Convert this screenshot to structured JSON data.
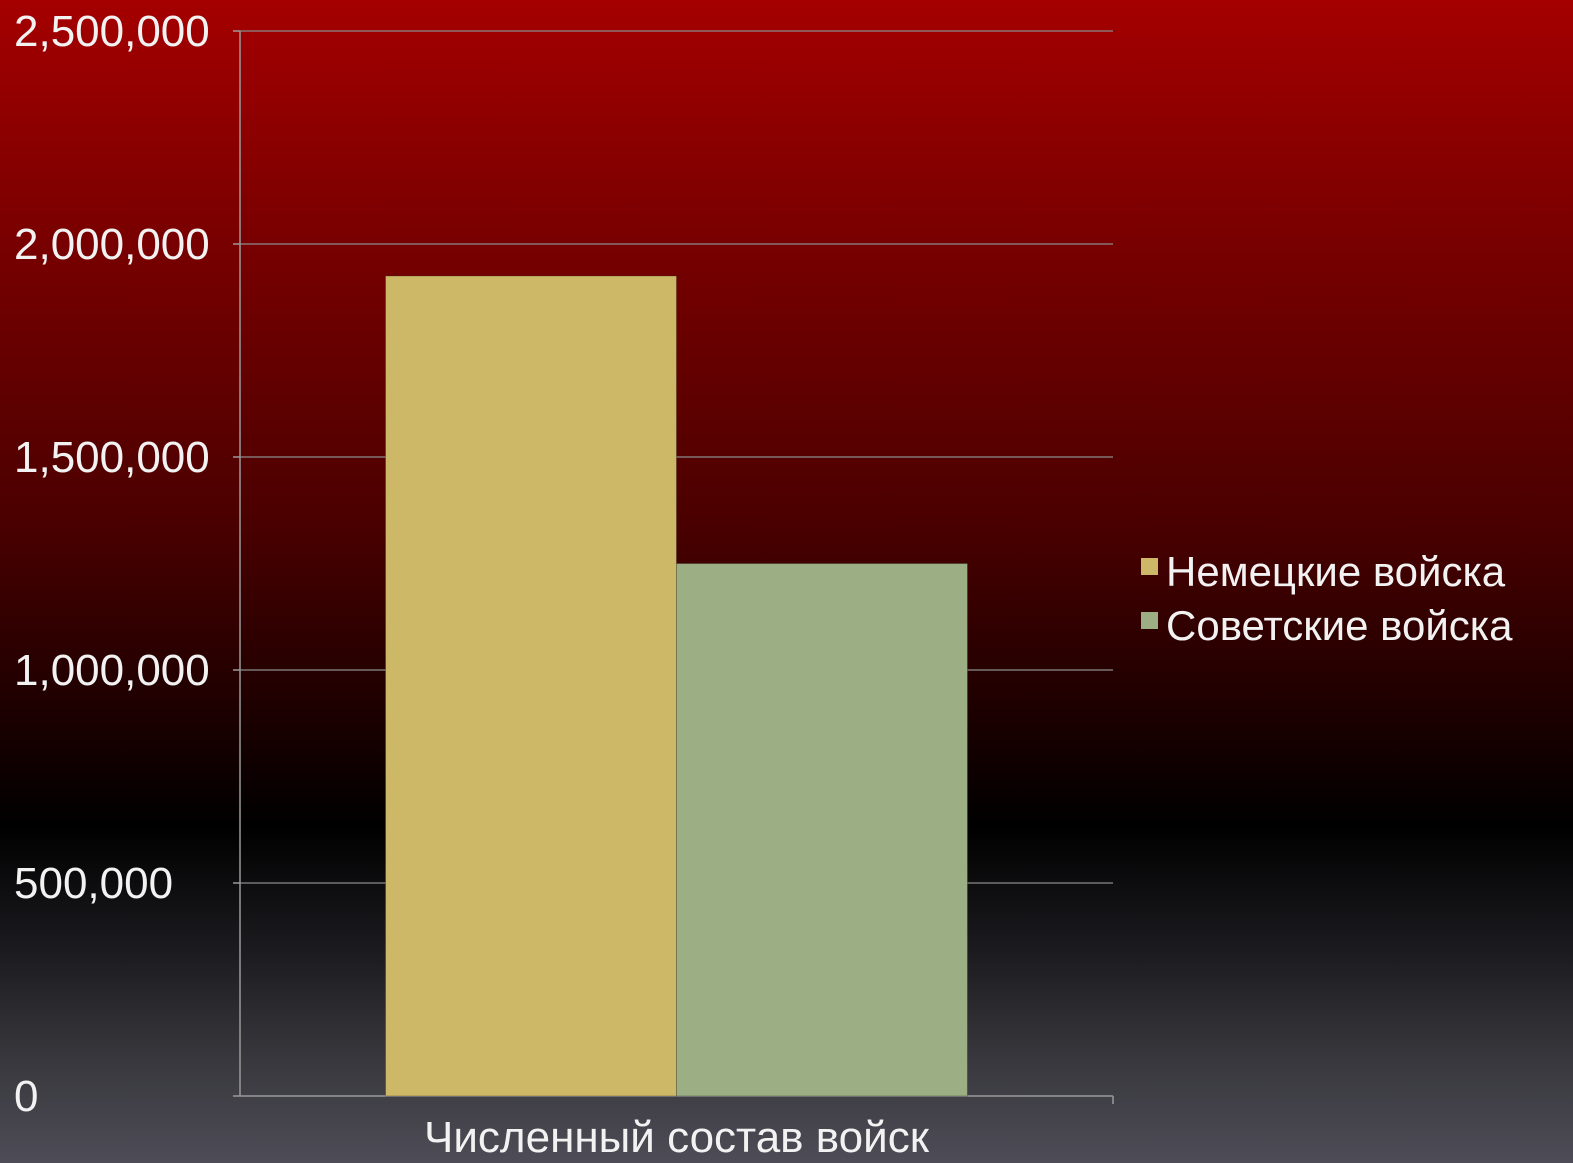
{
  "chart_data": {
    "type": "bar",
    "categories": [
      "Численный состав войск"
    ],
    "series": [
      {
        "name": "Немецкие войска",
        "values": [
          1925000
        ],
        "color": "#cdb868"
      },
      {
        "name": "Советские войска",
        "values": [
          1250000
        ],
        "color": "#9caf84"
      }
    ],
    "yticks": [
      "0",
      "500,000",
      "1,000,000",
      "1,500,000",
      "2,000,000",
      "2,500,000"
    ],
    "ylim": [
      0,
      2500000
    ],
    "grid": true,
    "legend_position": "right"
  }
}
